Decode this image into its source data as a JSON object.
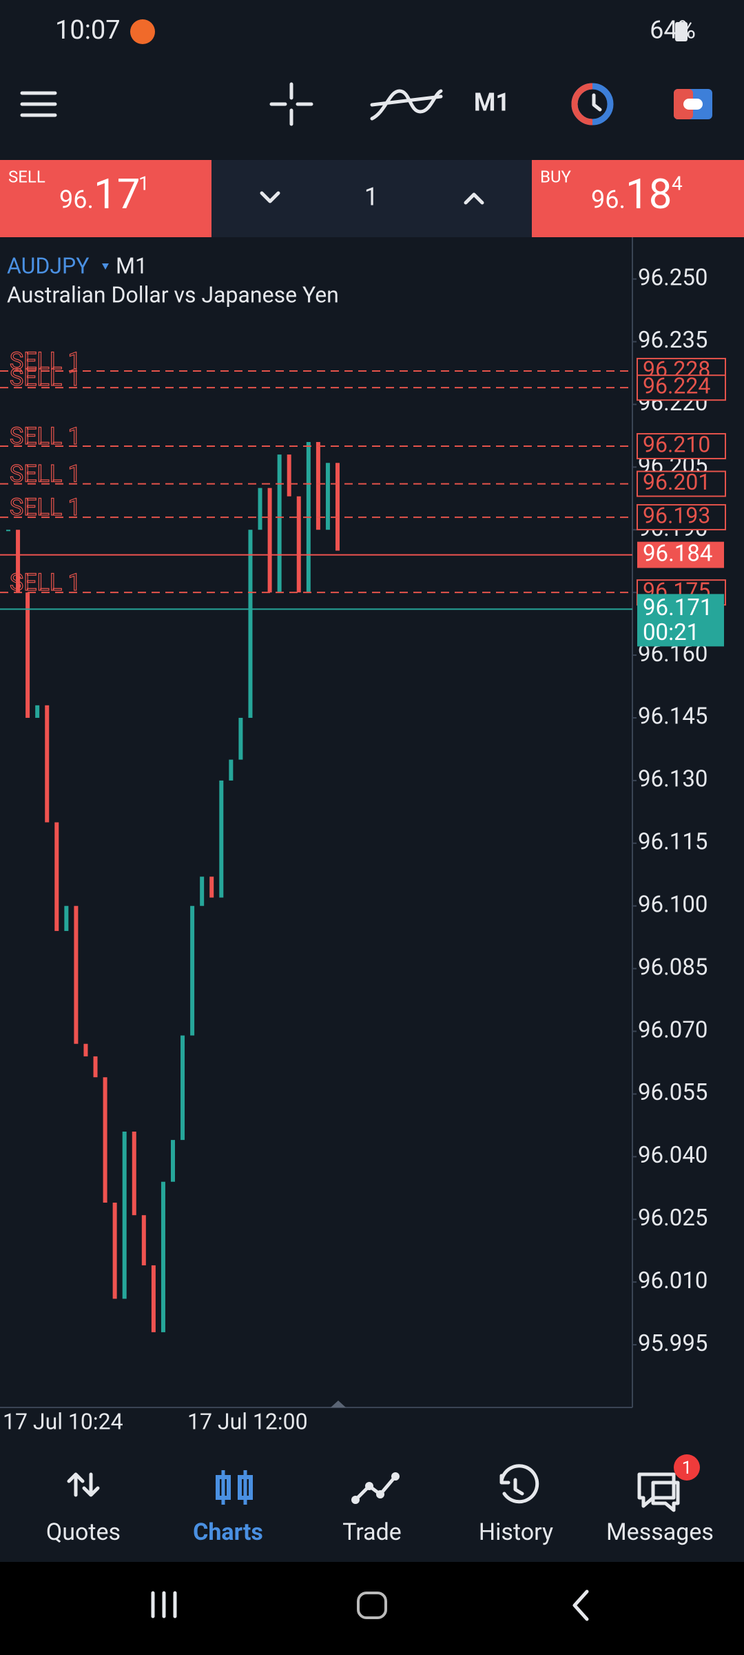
{
  "status_bar": {
    "time": "10:07",
    "battery": "64%"
  },
  "toolbar": {
    "timeframe": "M1"
  },
  "trade_panel": {
    "sell_label": "SELL",
    "sell_main": "96.",
    "sell_big": "17",
    "sell_sup": "1",
    "volume": "1",
    "buy_label": "BUY",
    "buy_main": "96.",
    "buy_big": "18",
    "buy_sup": "4"
  },
  "chart": {
    "symbol": "AUDJPY",
    "timeframe": "M1",
    "description": "Australian Dollar vs Japanese Yen",
    "ylim": [
      95.98,
      96.26
    ],
    "yticks": [
      {
        "value": 96.25,
        "label": "96.250"
      },
      96.235,
      {
        "value": 96.22,
        "label": "96.220"
      },
      96.205,
      {
        "value": 96.19,
        "label": "96.190"
      },
      96.175,
      {
        "value": 96.16,
        "label": "96.160"
      },
      96.145,
      {
        "value": 96.13,
        "label": "96.130"
      },
      96.115,
      {
        "value": 96.1,
        "label": "96.100"
      },
      96.085,
      {
        "value": 96.07,
        "label": "96.070"
      },
      96.055,
      {
        "value": 96.04,
        "label": "96.040"
      },
      96.025,
      {
        "value": 96.01,
        "label": "96.010"
      },
      95.995
    ],
    "orders": [
      {
        "name": "SELL 1",
        "price": 96.228
      },
      {
        "name": "SELL 1",
        "price": 96.224
      },
      {
        "name": "SELL 1",
        "price": {
          "value": 96.21,
          "label": "96.210"
        }
      },
      {
        "name": "SELL 1",
        "price": 96.201
      },
      {
        "name": "SELL 1",
        "price": 96.193
      },
      {
        "name": "SELL 1",
        "price": 96.175
      }
    ],
    "ask": 96.184,
    "bid": 96.171,
    "timer": "00:21",
    "closes": [
      96.19,
      96.175,
      96.145,
      96.148,
      96.12,
      96.094,
      96.1,
      96.067,
      96.064,
      96.059,
      96.029,
      96.006,
      96.046,
      96.026,
      96.014,
      95.998,
      96.034,
      96.044,
      96.069,
      96.1,
      96.107,
      96.102,
      96.13,
      96.135,
      96.145,
      96.19,
      96.2,
      96.175,
      96.208,
      96.198,
      96.175,
      96.211,
      96.19,
      96.206,
      96.185
    ],
    "xticks": [
      "17 Jul 10:24",
      "17 Jul 12:00"
    ]
  },
  "nav": {
    "items": [
      "Quotes",
      "Charts",
      "Trade",
      "History",
      "Messages"
    ],
    "active": "Charts",
    "badge": "1"
  }
}
